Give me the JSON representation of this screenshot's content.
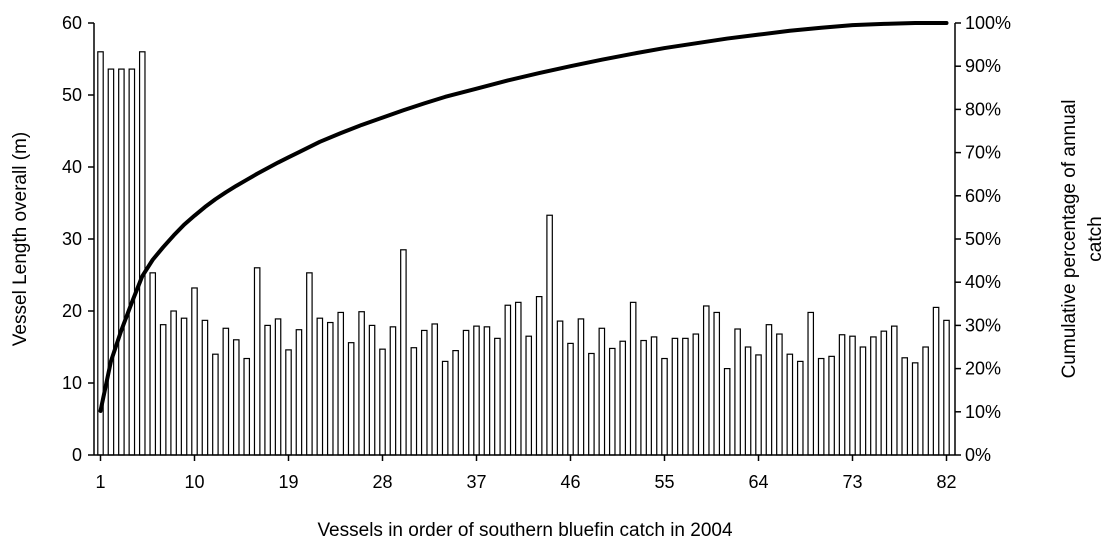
{
  "chart_data": {
    "type": "bar",
    "xlabel": "Vessels in order of southern bluefin catch in 2004",
    "ylabel": "Vessel Length overall (m)",
    "y2label": [
      "Cumulative percentage of annual",
      "catch"
    ],
    "x_tick_labels": [
      "1",
      "10",
      "19",
      "28",
      "37",
      "46",
      "55",
      "64",
      "73",
      "82"
    ],
    "x_tick_values": [
      1,
      10,
      19,
      28,
      37,
      46,
      55,
      64,
      73,
      82
    ],
    "y_ticks": [
      "0",
      "10",
      "20",
      "30",
      "40",
      "50",
      "60"
    ],
    "y2_ticks": [
      "0%",
      "10%",
      "20%",
      "30%",
      "40%",
      "50%",
      "60%",
      "70%",
      "80%",
      "90%",
      "100%"
    ],
    "ylim": [
      0,
      60
    ],
    "y2lim": [
      0,
      100
    ],
    "grid": false,
    "legend": "none",
    "series": [
      {
        "type": "bar",
        "axis": "left",
        "values": [
          56,
          53.6,
          53.6,
          53.6,
          56,
          25.3,
          18.1,
          20,
          19,
          23.2,
          18.7,
          14,
          17.6,
          16,
          13.4,
          26,
          18,
          18.9,
          14.6,
          17.4,
          25.3,
          19,
          18.4,
          19.8,
          15.6,
          19.9,
          18,
          14.7,
          17.8,
          28.5,
          14.9,
          17.3,
          18.2,
          13,
          14.5,
          17.3,
          17.9,
          17.8,
          16.2,
          20.8,
          21.2,
          16.5,
          22,
          33.3,
          18.6,
          15.5,
          18.9,
          14.1,
          17.6,
          14.8,
          15.8,
          21.2,
          15.9,
          16.4,
          13.4,
          16.2,
          16.2,
          16.8,
          20.7,
          19.8,
          12,
          17.5,
          15,
          13.9,
          18.1,
          16.8,
          14,
          13,
          19.8,
          13.4,
          13.7,
          16.7,
          16.5,
          15,
          16.4,
          17.2,
          17.9,
          13.5,
          12.8,
          15,
          20.5,
          18.7
        ]
      },
      {
        "type": "line",
        "axis": "right",
        "x": [
          1,
          2,
          3,
          4,
          5,
          6,
          7,
          8,
          9,
          10,
          11,
          12,
          13,
          14,
          15,
          16,
          17,
          18,
          19,
          20,
          22,
          24,
          26,
          28,
          30,
          32,
          34,
          37,
          40,
          43,
          46,
          49,
          52,
          55,
          58,
          61,
          64,
          67,
          70,
          73,
          76,
          79,
          82
        ],
        "values": [
          10.2,
          21.7,
          28.9,
          35.3,
          41.4,
          45.2,
          48.1,
          50.8,
          53.3,
          55.4,
          57.4,
          59.2,
          60.8,
          62.3,
          63.7,
          65.1,
          66.4,
          67.7,
          68.9,
          70.1,
          72.5,
          74.5,
          76.4,
          78.1,
          79.8,
          81.4,
          82.9,
          84.8,
          86.7,
          88.4,
          90,
          91.5,
          92.9,
          94.2,
          95.3,
          96.4,
          97.3,
          98.2,
          98.9,
          99.5,
          99.8,
          100,
          100
        ]
      }
    ]
  }
}
